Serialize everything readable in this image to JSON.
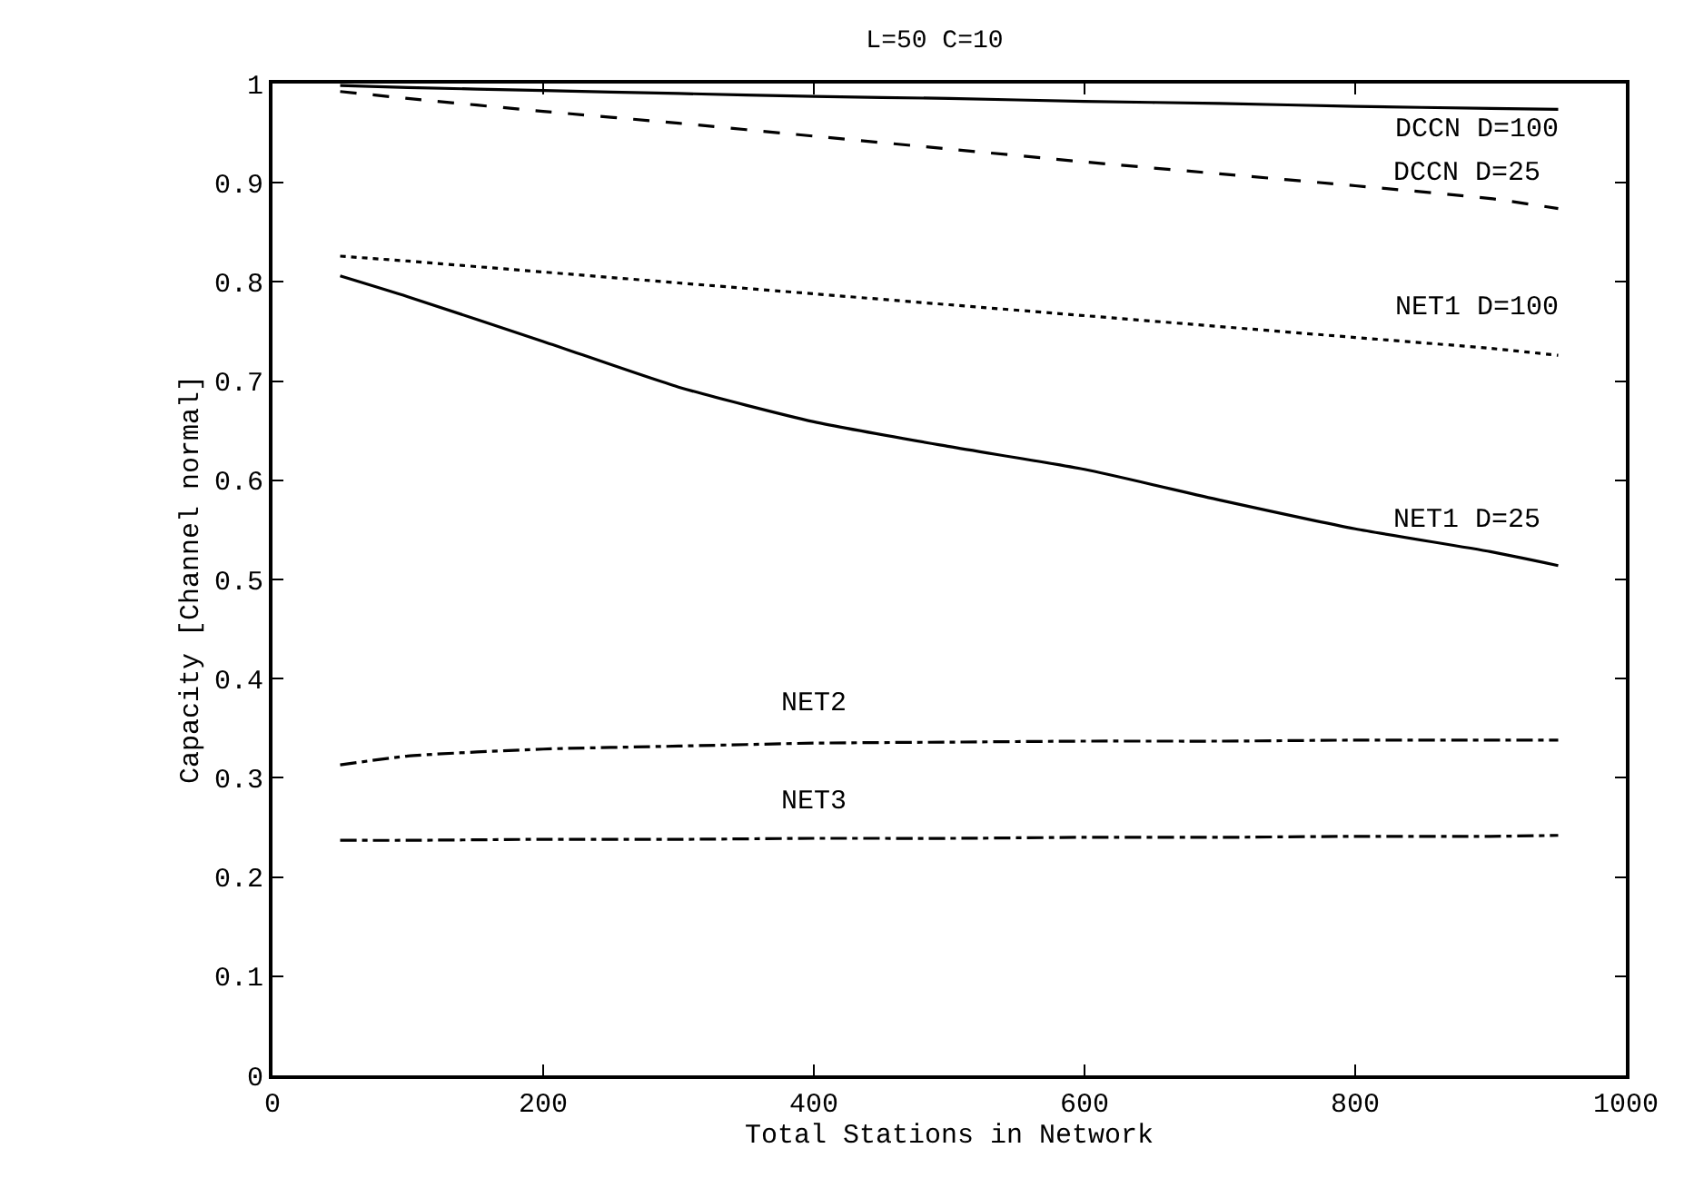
{
  "chart_data": {
    "type": "line",
    "title": "L=50 C=10",
    "xlabel": "Total Stations in Network",
    "ylabel": "Capacity [Channel normal]",
    "xlim": [
      0,
      1000
    ],
    "xticks": [
      0,
      200,
      400,
      600,
      800,
      1000
    ],
    "ylim": [
      0,
      1
    ],
    "yticks": [
      0,
      0.1,
      0.2,
      0.3,
      0.4,
      0.5,
      0.6,
      0.7,
      0.8,
      0.9,
      1
    ],
    "grid": false,
    "marker": "none",
    "x": [
      50,
      100,
      200,
      300,
      400,
      500,
      600,
      700,
      800,
      900,
      950
    ],
    "series": [
      {
        "name": "DCCN D=100",
        "color": "#000000",
        "line_style": "solid",
        "values": [
          0.998,
          0.996,
          0.993,
          0.99,
          0.987,
          0.985,
          0.982,
          0.98,
          0.977,
          0.975,
          0.974
        ]
      },
      {
        "name": "DCCN D=25",
        "color": "#000000",
        "line_style": "dashed",
        "values": [
          0.992,
          0.985,
          0.972,
          0.96,
          0.947,
          0.934,
          0.921,
          0.909,
          0.897,
          0.884,
          0.874
        ]
      },
      {
        "name": "NET1 D=100",
        "color": "#000000",
        "line_style": "dotted",
        "values": [
          0.826,
          0.821,
          0.81,
          0.799,
          0.788,
          0.777,
          0.766,
          0.755,
          0.744,
          0.733,
          0.726
        ]
      },
      {
        "name": "NET1 D=25",
        "color": "#000000",
        "line_style": "solid",
        "values": [
          0.806,
          0.785,
          0.74,
          0.694,
          0.659,
          0.634,
          0.611,
          0.58,
          0.551,
          0.528,
          0.514
        ]
      },
      {
        "name": "NET2",
        "color": "#000000",
        "line_style": "dashdot",
        "values": [
          0.313,
          0.322,
          0.329,
          0.332,
          0.335,
          0.336,
          0.337,
          0.337,
          0.338,
          0.338,
          0.338
        ]
      },
      {
        "name": "NET3",
        "color": "#000000",
        "line_style": "dashdot",
        "values": [
          0.237,
          0.237,
          0.238,
          0.238,
          0.239,
          0.239,
          0.24,
          0.24,
          0.241,
          0.241,
          0.242
        ]
      }
    ]
  }
}
